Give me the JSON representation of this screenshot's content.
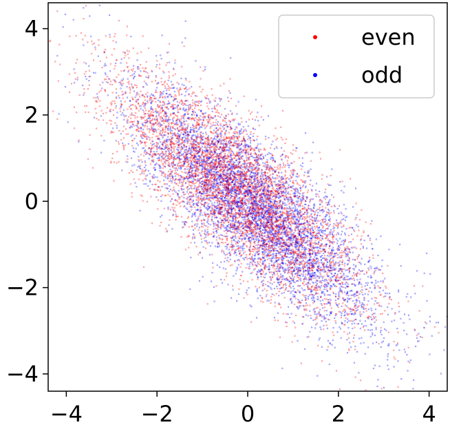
{
  "chart_data": {
    "type": "scatter",
    "title": "",
    "xlabel": "",
    "ylabel": "",
    "xlim": [
      -4.4,
      4.4
    ],
    "ylim": [
      -4.4,
      4.6
    ],
    "xticks": [
      -4,
      -2,
      0,
      2,
      4
    ],
    "yticks": [
      -4,
      -2,
      0,
      2,
      4
    ],
    "xtick_labels": [
      "−4",
      "−2",
      "0",
      "2",
      "4"
    ],
    "ytick_labels": [
      "−4",
      "−2",
      "0",
      "2",
      "4"
    ],
    "grid": false,
    "legend_position": "top-right",
    "correlation": -0.8,
    "series": [
      {
        "name": "even",
        "color": "#ff0000",
        "n_points": 5000,
        "mean": [
          -0.2,
          0.2
        ],
        "std": [
          1.35,
          1.35
        ],
        "points": [
          [
            -2.4,
            2.1
          ],
          [
            -1.8,
            1.7
          ],
          [
            -1.2,
            1.3
          ],
          [
            -0.6,
            0.7
          ],
          [
            0.0,
            0.2
          ],
          [
            0.6,
            -0.3
          ],
          [
            1.2,
            -0.9
          ],
          [
            1.8,
            -1.5
          ],
          [
            -2.9,
            2.6
          ],
          [
            -0.9,
            0.4
          ],
          [
            0.4,
            -0.4
          ],
          [
            2.4,
            -2.1
          ]
        ]
      },
      {
        "name": "odd",
        "color": "#0000ff",
        "n_points": 5000,
        "mean": [
          0.2,
          -0.2
        ],
        "std": [
          1.35,
          1.35
        ],
        "points": [
          [
            -2.0,
            1.9
          ],
          [
            -1.4,
            1.4
          ],
          [
            -0.8,
            0.9
          ],
          [
            -0.2,
            0.3
          ],
          [
            0.4,
            -0.4
          ],
          [
            1.0,
            -0.9
          ],
          [
            1.6,
            -1.6
          ],
          [
            2.2,
            -2.1
          ],
          [
            2.8,
            -2.6
          ],
          [
            -1.5,
            1.5
          ],
          [
            1.4,
            -1.8
          ],
          [
            3.0,
            -2.8
          ]
        ]
      }
    ]
  }
}
